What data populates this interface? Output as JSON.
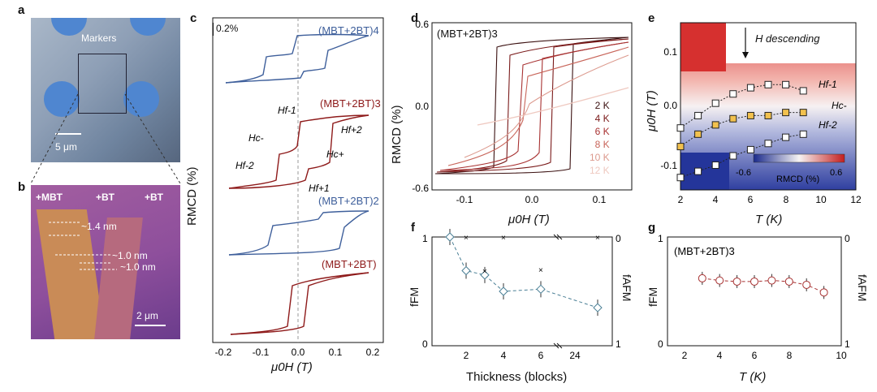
{
  "panels": {
    "a": {
      "label": "a",
      "markers_label": "Markers",
      "scale_bar": "5 μm"
    },
    "b": {
      "label": "b",
      "region_labels": [
        "+MBT",
        "+BT",
        "+BT"
      ],
      "step_labels": [
        "~1.4 nm",
        "~1.0 nm",
        "~1.0 nm"
      ],
      "scale_bar": "2 μm"
    },
    "c": {
      "label": "c",
      "scale_label": "0.2%",
      "ylabel": "RMCD (%)",
      "xlabel": "μ0H (T)",
      "ticks": [
        "-0.2",
        "-0.1",
        "0.0",
        "0.1",
        "0.2"
      ],
      "trace_labels": [
        "(MBT+2BT)4",
        "(MBT+2BT)3",
        "(MBT+2BT)2",
        "(MBT+2BT)"
      ],
      "annotations": [
        "Hf-1",
        "Hf+2",
        "Hc-",
        "Hc+",
        "Hf-2",
        "Hf+1"
      ]
    },
    "d": {
      "label": "d",
      "title": "(MBT+2BT)3",
      "ylabel": "RMCD (%)",
      "xlabel": "μ0H (T)",
      "yticks": [
        "0.6",
        "0.0",
        "-0.6"
      ],
      "xticks": [
        "-0.1",
        "0.0",
        "0.1"
      ],
      "legend": [
        "2 K",
        "4 K",
        "6 K",
        "8 K",
        "10 K",
        "12 K"
      ],
      "legend_colors": [
        "#3b1111",
        "#7a1a1a",
        "#a83232",
        "#c8655a",
        "#dc9a8e",
        "#efc9c0"
      ]
    },
    "e": {
      "label": "e",
      "annotation": "H descending",
      "ylabel": "μ0H (T)",
      "xlabel": "T (K)",
      "yticks": [
        "0.1",
        "0.0",
        "-0.1"
      ],
      "xticks": [
        "2",
        "4",
        "6",
        "8",
        "10",
        "12"
      ],
      "colorbar_min": "-0.6",
      "colorbar_max": "0.6",
      "colorbar_label": "RMCD (%)",
      "curve_labels": [
        "Hf-1",
        "Hc-",
        "Hf-2"
      ]
    },
    "f": {
      "label": "f",
      "xlabel": "Thickness (blocks)",
      "ylabel_left": "fFM",
      "ylabel_right": "fAFM",
      "left_ticks": [
        "1",
        "0"
      ],
      "right_ticks": [
        "0",
        "1"
      ],
      "xticks": [
        "2",
        "4",
        "6",
        "24"
      ]
    },
    "g": {
      "label": "g",
      "title": "(MBT+2BT)3",
      "xlabel": "T (K)",
      "ylabel_left": "fFM",
      "ylabel_right": "fAFM",
      "left_ticks": [
        "1",
        "0"
      ],
      "right_ticks": [
        "0",
        "1"
      ],
      "xticks": [
        "2",
        "4",
        "6",
        "8",
        "10"
      ]
    }
  },
  "chart_data": [
    {
      "type": "scatter",
      "panel": "e",
      "xlabel": "T (K)",
      "ylabel": "μ0H (T)",
      "xlim": [
        2,
        12
      ],
      "ylim": [
        -0.12,
        0.15
      ],
      "series": [
        {
          "name": "Hf-1",
          "x": [
            2,
            3,
            4,
            5,
            6,
            7,
            8,
            9
          ],
          "y": [
            -0.02,
            0.0,
            0.02,
            0.035,
            0.045,
            0.05,
            0.05,
            0.04
          ]
        },
        {
          "name": "Hc-",
          "x": [
            2,
            3,
            4,
            5,
            6,
            7,
            8,
            9
          ],
          "y": [
            -0.05,
            -0.03,
            -0.015,
            -0.005,
            0.0,
            0.0,
            0.005,
            0.005
          ]
        },
        {
          "name": "Hf-2",
          "x": [
            2,
            3,
            4,
            5,
            6,
            7,
            8,
            9
          ],
          "y": [
            -0.1,
            -0.09,
            -0.08,
            -0.065,
            -0.055,
            -0.045,
            -0.035,
            -0.03
          ]
        }
      ]
    },
    {
      "type": "scatter",
      "panel": "f",
      "xlabel": "Thickness (blocks)",
      "ylabel": "fFM",
      "categories": [
        "1",
        "2",
        "3",
        "4",
        "6",
        "25"
      ],
      "series": [
        {
          "name": "fFM",
          "values": [
            1.0,
            0.69,
            0.65,
            0.5,
            0.52,
            0.35
          ]
        },
        {
          "name": "fAFM",
          "values": [
            0.0,
            0.0,
            0.31,
            0.0,
            0.3,
            0.0
          ]
        }
      ],
      "ylim": [
        0,
        1
      ]
    },
    {
      "type": "line",
      "panel": "g",
      "xlabel": "T (K)",
      "ylabel": "fFM",
      "x": [
        2,
        3,
        4,
        5,
        6,
        7,
        8,
        9
      ],
      "series": [
        {
          "name": "fFM",
          "values": [
            0.62,
            0.6,
            0.59,
            0.59,
            0.6,
            0.59,
            0.56,
            0.49
          ]
        }
      ],
      "xlim": [
        0,
        10
      ],
      "ylim": [
        0,
        1
      ]
    }
  ]
}
